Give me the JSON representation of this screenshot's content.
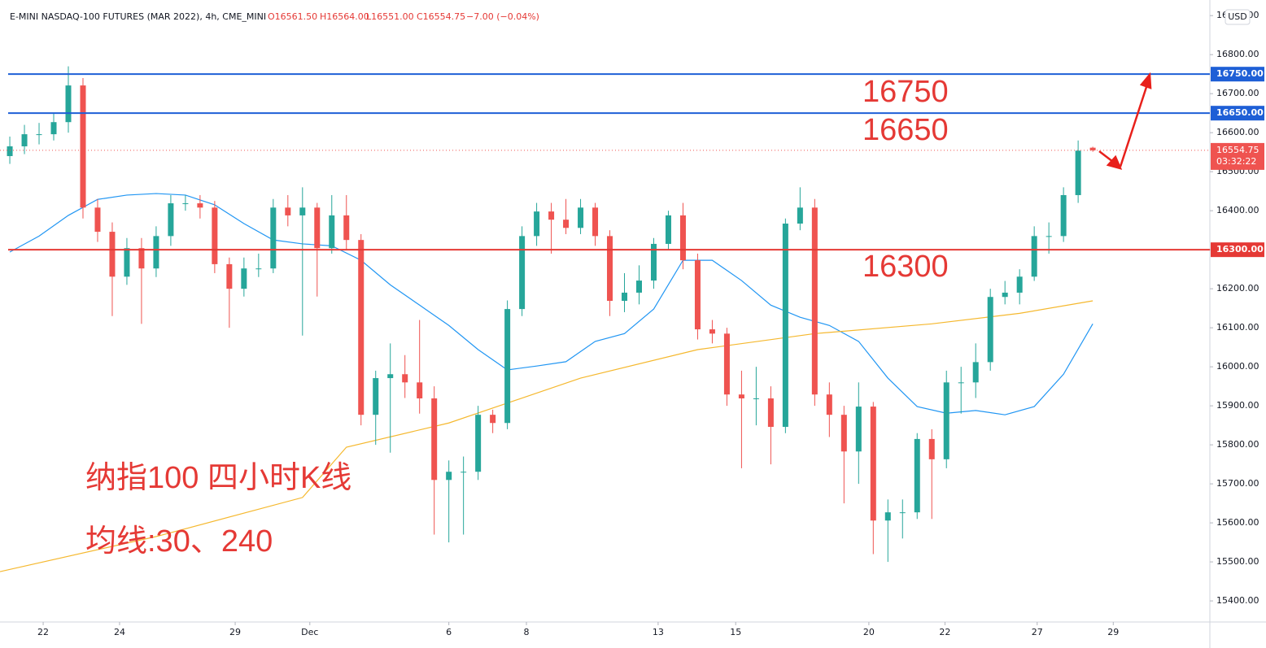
{
  "chart_data": {
    "type": "candlestick",
    "header": {
      "symbol": "E-MINI NASDAQ-100 FUTURES (MAR 2022), 4h, CME_MINI",
      "open": "O16561.50",
      "high": "H16564.00",
      "low": "L16551.00",
      "close": "C16554.75",
      "change": "−7.00 (−0.04%)"
    },
    "currency": "USD",
    "up_color": "#26a69a",
    "down_color": "#ef5350",
    "xlim": [
      -0.67,
      82
    ],
    "xticks": [
      {
        "value": 2.28,
        "label": "22"
      },
      {
        "value": 7.5,
        "label": "24"
      },
      {
        "value": 15.4,
        "label": "29"
      },
      {
        "value": 20.5,
        "label": "Dec"
      },
      {
        "value": 30,
        "label": "6"
      },
      {
        "value": 35.3,
        "label": "8"
      },
      {
        "value": 44.3,
        "label": "13"
      },
      {
        "value": 49.6,
        "label": "15"
      },
      {
        "value": 58.7,
        "label": "20"
      },
      {
        "value": 63.9,
        "label": "22"
      },
      {
        "value": 70.2,
        "label": "27"
      },
      {
        "value": 75.4,
        "label": "29"
      }
    ],
    "ylim": [
      15346,
      16940
    ],
    "yticks": [
      {
        "value": 15400,
        "label": "15400.00"
      },
      {
        "value": 15500,
        "label": "15500.00"
      },
      {
        "value": 15600,
        "label": "15600.00"
      },
      {
        "value": 15700,
        "label": "15700.00"
      },
      {
        "value": 15800,
        "label": "15800.00"
      },
      {
        "value": 15900,
        "label": "15900.00"
      },
      {
        "value": 16000,
        "label": "16000.00"
      },
      {
        "value": 16100,
        "label": "16100.00"
      },
      {
        "value": 16200,
        "label": "16200.00"
      },
      {
        "value": 16300,
        "label": "16300.00"
      },
      {
        "value": 16400,
        "label": "16400.00"
      },
      {
        "value": 16500,
        "label": "16500.00"
      },
      {
        "value": 16600,
        "label": "16600.00"
      },
      {
        "value": 16700,
        "label": "16700.00"
      },
      {
        "value": 16800,
        "label": "16800.00"
      },
      {
        "value": 16900,
        "label": "16900.00"
      }
    ],
    "open": [
      16540,
      16565,
      16596,
      16596,
      16627,
      16721,
      16408,
      16346,
      16231,
      16304,
      16252,
      16335,
      16419,
      16419,
      16408,
      16263,
      16200,
      16252,
      16252,
      16408,
      16388,
      16408,
      16304,
      16388,
      16325,
      15877,
      15971,
      15981,
      15960,
      15919,
      15710,
      15731,
      15731,
      15877,
      15856,
      16148,
      16335,
      16398,
      16377,
      16356,
      16408,
      16335,
      16169,
      16190,
      16221,
      16315,
      16388,
      16273,
      16096,
      16085,
      15929,
      15919,
      15919,
      15846,
      16367,
      16408,
      15929,
      15877,
      15783,
      15898,
      15606,
      15627,
      15627,
      15815,
      15763,
      15960,
      15960,
      16012,
      16179,
      16190,
      16231,
      16335,
      16335,
      16440,
      16561.5
    ],
    "high": [
      16590,
      16620,
      16625,
      16650,
      16770,
      16740,
      16430,
      16370,
      16330,
      16330,
      16360,
      16440,
      16440,
      16440,
      16425,
      16280,
      16280,
      16290,
      16430,
      16440,
      16460,
      16420,
      16440,
      16440,
      16340,
      15990,
      16060,
      16030,
      16120,
      15950,
      15760,
      15770,
      15900,
      15890,
      16170,
      16360,
      16420,
      16420,
      16430,
      16430,
      16420,
      16350,
      16240,
      16260,
      16330,
      16400,
      16420,
      16290,
      16120,
      16100,
      15990,
      16000,
      15950,
      16380,
      16460,
      16430,
      15960,
      15900,
      15960,
      15910,
      15660,
      15660,
      15830,
      15840,
      15990,
      16000,
      16060,
      16200,
      16220,
      16250,
      16360,
      16370,
      16460,
      16580,
      16564
    ],
    "low": [
      16520,
      16545,
      16570,
      16580,
      16600,
      16380,
      16320,
      16130,
      16210,
      16110,
      16230,
      16310,
      16400,
      16380,
      16240,
      16100,
      16180,
      16230,
      16240,
      16360,
      16080,
      16180,
      16290,
      16300,
      15850,
      15800,
      15780,
      15920,
      15880,
      15570,
      15550,
      15570,
      15710,
      15830,
      15840,
      16130,
      16310,
      16290,
      16340,
      16340,
      16310,
      16130,
      16140,
      16160,
      16200,
      16300,
      16250,
      16070,
      16060,
      15900,
      15740,
      15850,
      15750,
      15830,
      16350,
      15900,
      15820,
      15650,
      15700,
      15520,
      15500,
      15560,
      15610,
      15610,
      15740,
      15880,
      15920,
      15990,
      16160,
      16160,
      16220,
      16290,
      16320,
      16420,
      16551
    ],
    "close": [
      16565,
      16596,
      16596,
      16627,
      16721,
      16408,
      16346,
      16231,
      16304,
      16252,
      16335,
      16419,
      16419,
      16408,
      16263,
      16200,
      16252,
      16252,
      16408,
      16388,
      16408,
      16304,
      16388,
      16325,
      15877,
      15971,
      15981,
      15960,
      15919,
      15710,
      15731,
      15731,
      15877,
      15856,
      16148,
      16335,
      16398,
      16377,
      16356,
      16408,
      16335,
      16169,
      16190,
      16221,
      16315,
      16388,
      16273,
      16096,
      16085,
      15929,
      15919,
      15919,
      15846,
      16367,
      16408,
      15929,
      15877,
      15783,
      15898,
      15606,
      15627,
      15627,
      15815,
      15763,
      15960,
      15960,
      16012,
      16179,
      16190,
      16231,
      16335,
      16335,
      16440,
      16554,
      16554.75
    ],
    "countdown": "03:32:22",
    "series": [
      {
        "name": "MA30",
        "color": "#2196f3",
        "x": [
          0,
          2,
          4,
          6,
          8,
          10,
          12,
          14,
          16,
          18,
          20,
          22,
          24,
          26,
          28,
          30,
          32,
          34,
          36,
          38,
          40,
          42,
          44,
          46,
          48,
          50,
          52,
          54,
          56,
          58,
          60,
          62,
          64,
          66,
          68,
          70,
          72,
          74
        ],
        "values": [
          16294,
          16335,
          16388,
          16429,
          16440,
          16444,
          16440,
          16415,
          16367,
          16325,
          16315,
          16310,
          16273,
          16210,
          16158,
          16106,
          16044,
          15992,
          16002,
          16013,
          16065,
          16085,
          16148,
          16273,
          16273,
          16221,
          16158,
          16127,
          16106,
          16065,
          15971,
          15898,
          15881,
          15888,
          15877,
          15898,
          15981,
          16110
        ]
      },
      {
        "name": "MA240",
        "color": "#f5b82e",
        "x": [
          -0.67,
          10,
          20,
          23,
          30,
          39,
          47,
          55,
          63,
          69,
          74
        ],
        "values": [
          15475,
          15565,
          15665,
          15794,
          15856,
          15971,
          16044,
          16085,
          16110,
          16137,
          16169
        ]
      }
    ],
    "hlines": [
      {
        "value": 16750,
        "label": "16750.00",
        "color": "#1e5fd6"
      },
      {
        "value": 16650,
        "label": "16650.00",
        "color": "#1e5fd6"
      },
      {
        "value": 16300,
        "label": "16300.00",
        "color": "#e53935"
      }
    ],
    "annotations": [
      "16750",
      "16650",
      "16300",
      "纳指100 四小时K线",
      "均线:30、240"
    ]
  }
}
